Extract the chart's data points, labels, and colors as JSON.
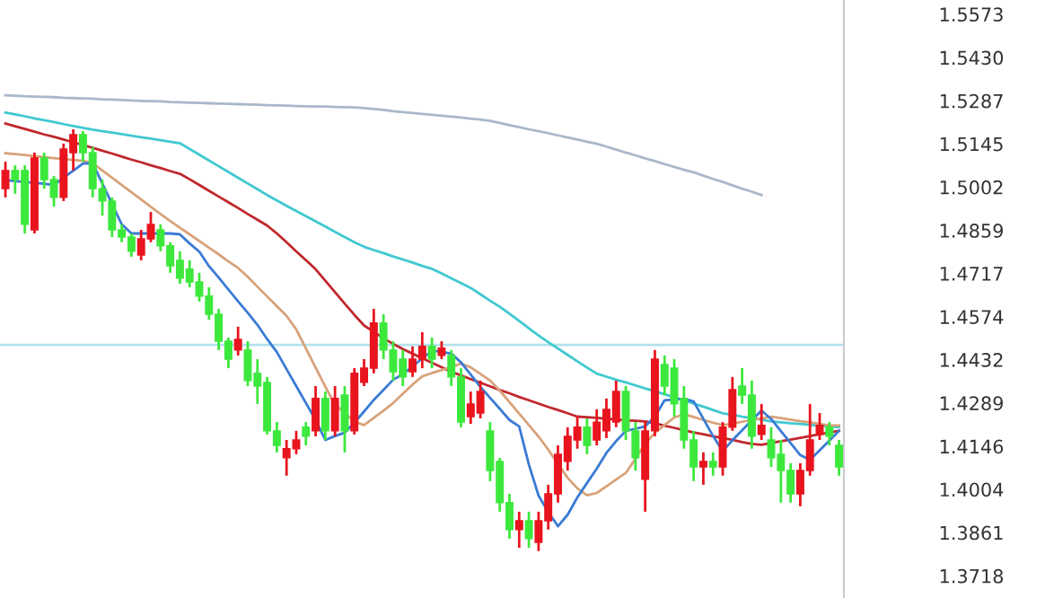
{
  "chart_data": {
    "type": "candlestick",
    "categories": [
      null,
      null,
      null,
      null,
      null,
      null,
      null,
      null,
      null,
      null,
      null,
      null,
      null,
      null,
      null,
      null,
      null,
      null,
      null,
      null,
      null,
      null,
      null,
      null,
      null,
      null,
      null,
      null,
      null,
      null,
      null,
      null,
      null,
      null,
      null,
      null,
      null,
      null,
      null,
      null,
      null,
      null,
      null,
      null,
      null,
      null,
      null,
      null,
      null,
      null,
      null,
      null,
      null,
      null,
      null,
      null,
      null,
      null,
      null,
      null,
      null,
      null,
      null,
      null,
      null,
      null,
      null,
      null,
      null,
      null,
      null,
      null,
      null,
      null,
      null,
      null,
      null,
      null,
      null,
      null,
      null,
      null,
      null,
      null,
      null,
      null,
      null
    ],
    "ohlc": [
      [
        1.4997,
        1.5086,
        1.4968,
        1.5057
      ],
      [
        1.5057,
        1.5074,
        1.498,
        1.5027
      ],
      [
        1.5057,
        1.5074,
        1.4849,
        1.4879
      ],
      [
        1.4861,
        1.5116,
        1.4849,
        1.5098
      ],
      [
        1.5098,
        1.5116,
        1.4997,
        1.5027
      ],
      [
        1.5027,
        1.5039,
        1.4938,
        1.4968
      ],
      [
        1.4968,
        1.5146,
        1.4956,
        1.5128
      ],
      [
        1.5116,
        1.5193,
        1.5057,
        1.5175
      ],
      [
        1.5175,
        1.5187,
        1.5086,
        1.5116
      ],
      [
        1.5116,
        1.5134,
        1.4968,
        1.4997
      ],
      [
        1.4997,
        1.5027,
        1.4908,
        1.4956
      ],
      [
        1.4956,
        1.4968,
        1.4837,
        1.4861
      ],
      [
        1.4861,
        1.4879,
        1.482,
        1.4837
      ],
      [
        1.4837,
        1.4849,
        1.4772,
        1.479
      ],
      [
        1.4778,
        1.4861,
        1.476,
        1.4831
      ],
      [
        1.4831,
        1.492,
        1.482,
        1.4879
      ],
      [
        1.4861,
        1.4879,
        1.479,
        1.4808
      ],
      [
        1.4808,
        1.482,
        1.4719,
        1.4742
      ],
      [
        1.476,
        1.479,
        1.4683,
        1.4701
      ],
      [
        1.4731,
        1.476,
        1.4671,
        1.4689
      ],
      [
        1.4689,
        1.4719,
        1.4624,
        1.4642
      ],
      [
        1.4642,
        1.4671,
        1.4564,
        1.4582
      ],
      [
        1.4582,
        1.46,
        1.4464,
        1.4493
      ],
      [
        1.4493,
        1.4505,
        1.4404,
        1.4434
      ],
      [
        1.4464,
        1.4541,
        1.4446,
        1.4499
      ],
      [
        1.4464,
        1.4493,
        1.4345,
        1.4363
      ],
      [
        1.4387,
        1.4434,
        1.4286,
        1.4345
      ],
      [
        1.4357,
        1.4375,
        1.4185,
        1.4197
      ],
      [
        1.4197,
        1.4226,
        1.4126,
        1.4149
      ],
      [
        1.4108,
        1.4167,
        1.4049,
        1.4138
      ],
      [
        1.4138,
        1.4197,
        1.412,
        1.4167
      ],
      [
        1.4209,
        1.4226,
        1.4149,
        1.4179
      ],
      [
        1.4197,
        1.4345,
        1.4179,
        1.4304
      ],
      [
        1.4304,
        1.4327,
        1.4167,
        1.4197
      ],
      [
        1.4197,
        1.4345,
        1.4179,
        1.4304
      ],
      [
        1.4315,
        1.4345,
        1.4126,
        1.4197
      ],
      [
        1.4197,
        1.4404,
        1.4185,
        1.4387
      ],
      [
        1.4357,
        1.4434,
        1.4345,
        1.4404
      ],
      [
        1.4404,
        1.46,
        1.4387,
        1.4553
      ],
      [
        1.4553,
        1.4582,
        1.4434,
        1.4464
      ],
      [
        1.4464,
        1.4493,
        1.4363,
        1.4392
      ],
      [
        1.4434,
        1.4464,
        1.4345,
        1.4375
      ],
      [
        1.4392,
        1.4476,
        1.4375,
        1.4434
      ],
      [
        1.4434,
        1.4523,
        1.4404,
        1.4476
      ],
      [
        1.4476,
        1.4505,
        1.4404,
        1.4434
      ],
      [
        1.4446,
        1.4493,
        1.4434,
        1.447
      ],
      [
        1.4446,
        1.4464,
        1.4345,
        1.4375
      ],
      [
        1.4375,
        1.4404,
        1.4209,
        1.4226
      ],
      [
        1.4244,
        1.4327,
        1.422,
        1.4286
      ],
      [
        1.4256,
        1.4363,
        1.4238,
        1.4327
      ],
      [
        1.4197,
        1.4226,
        1.4031,
        1.4066
      ],
      [
        1.4096,
        1.4108,
        1.393,
        1.396
      ],
      [
        1.396,
        1.3989,
        1.3841,
        1.3871
      ],
      [
        1.3871,
        1.393,
        1.3811,
        1.39
      ],
      [
        1.39,
        1.393,
        1.3811,
        1.3841
      ],
      [
        1.3829,
        1.393,
        1.38,
        1.39
      ],
      [
        1.39,
        1.4019,
        1.3871,
        1.3989
      ],
      [
        1.3989,
        1.4149,
        1.396,
        1.412
      ],
      [
        1.4096,
        1.4209,
        1.4066,
        1.4179
      ],
      [
        1.4167,
        1.4244,
        1.4138,
        1.4209
      ],
      [
        1.4209,
        1.4238,
        1.412,
        1.4149
      ],
      [
        1.4167,
        1.4268,
        1.4149,
        1.4226
      ],
      [
        1.4197,
        1.4304,
        1.4173,
        1.4268
      ],
      [
        1.4226,
        1.4363,
        1.4209,
        1.4327
      ],
      [
        1.4327,
        1.4345,
        1.4167,
        1.4197
      ],
      [
        1.4197,
        1.4226,
        1.4066,
        1.4108
      ],
      [
        1.4037,
        1.4226,
        1.393,
        1.4197
      ],
      [
        1.4197,
        1.4464,
        1.4179,
        1.4434
      ],
      [
        1.4416,
        1.4446,
        1.4315,
        1.4345
      ],
      [
        1.4404,
        1.4434,
        1.4244,
        1.4286
      ],
      [
        1.4304,
        1.4345,
        1.4138,
        1.4167
      ],
      [
        1.4167,
        1.4197,
        1.4031,
        1.4078
      ],
      [
        1.4078,
        1.4126,
        1.4019,
        1.4096
      ],
      [
        1.4096,
        1.4126,
        1.4049,
        1.4078
      ],
      [
        1.4078,
        1.4226,
        1.4049,
        1.4209
      ],
      [
        1.4209,
        1.4375,
        1.4197,
        1.4333
      ],
      [
        1.4345,
        1.4404,
        1.4286,
        1.4315
      ],
      [
        1.4315,
        1.4363,
        1.4138,
        1.4179
      ],
      [
        1.4185,
        1.4286,
        1.4167,
        1.4215
      ],
      [
        1.4167,
        1.4209,
        1.4078,
        1.4108
      ],
      [
        1.412,
        1.4167,
        1.396,
        1.4066
      ],
      [
        1.4066,
        1.409,
        1.396,
        1.3989
      ],
      [
        1.3989,
        1.409,
        1.3948,
        1.4066
      ],
      [
        1.4066,
        1.4286,
        1.4049,
        1.4167
      ],
      [
        1.4185,
        1.4256,
        1.4167,
        1.4215
      ],
      [
        1.4209,
        1.4226,
        1.4149,
        1.4179
      ],
      [
        1.4149,
        1.4167,
        1.4049,
        1.4078
      ]
    ],
    "colors": [
      "#e8141e",
      "#3de83d",
      "#3de83d",
      "#e8141e",
      "#3de83d",
      "#3de83d",
      "#e8141e",
      "#e8141e",
      "#3de83d",
      "#3de83d",
      "#3de83d",
      "#3de83d",
      "#3de83d",
      "#3de83d",
      "#e8141e",
      "#e8141e",
      "#3de83d",
      "#3de83d",
      "#3de83d",
      "#3de83d",
      "#3de83d",
      "#3de83d",
      "#3de83d",
      "#3de83d",
      "#e8141e",
      "#3de83d",
      "#3de83d",
      "#3de83d",
      "#3de83d",
      "#e8141e",
      "#e8141e",
      "#3de83d",
      "#e8141e",
      "#3de83d",
      "#e8141e",
      "#3de83d",
      "#e8141e",
      "#e8141e",
      "#e8141e",
      "#3de83d",
      "#3de83d",
      "#3de83d",
      "#e8141e",
      "#e8141e",
      "#3de83d",
      "#e8141e",
      "#3de83d",
      "#3de83d",
      "#e8141e",
      "#e8141e",
      "#3de83d",
      "#3de83d",
      "#3de83d",
      "#e8141e",
      "#3de83d",
      "#e8141e",
      "#e8141e",
      "#e8141e",
      "#e8141e",
      "#e8141e",
      "#3de83d",
      "#e8141e",
      "#e8141e",
      "#e8141e",
      "#3de83d",
      "#3de83d",
      "#e8141e",
      "#e8141e",
      "#3de83d",
      "#3de83d",
      "#3de83d",
      "#3de83d",
      "#e8141e",
      "#3de83d",
      "#e8141e",
      "#e8141e",
      "#3de83d",
      "#3de83d",
      "#e8141e",
      "#3de83d",
      "#3de83d",
      "#3de83d",
      "#e8141e",
      "#e8141e",
      "#e8141e",
      "#3de83d",
      "#3de83d"
    ],
    "series": [
      {
        "type": "line",
        "color": "#a9b8c9",
        "values": [
          1.5305,
          1.5304,
          1.5302,
          1.5301,
          1.53,
          1.5299,
          1.5297,
          1.5296,
          1.5295,
          1.5294,
          1.5292,
          1.5291,
          1.529,
          1.5288,
          1.5287,
          1.5286,
          1.5285,
          1.5283,
          1.5282,
          1.5281,
          1.528,
          1.5279,
          1.5278,
          1.5277,
          1.5276,
          1.5275,
          1.5274,
          1.5273,
          1.5272,
          1.5271,
          1.527,
          1.5269,
          1.5268,
          1.5268,
          1.5267,
          1.5266,
          1.5265,
          1.5263,
          1.526,
          1.5257,
          1.5253,
          1.525,
          1.5247,
          1.5244,
          1.5241,
          1.5238,
          1.5235,
          1.5232,
          1.5228,
          1.5225,
          1.5221,
          1.5214,
          1.5207,
          1.52,
          1.5193,
          1.5187,
          1.518,
          1.5173,
          1.5166,
          1.5159,
          1.5152,
          1.5145,
          1.5136,
          1.5126,
          1.5116,
          1.5107,
          1.5097,
          1.5088,
          1.5078,
          1.5069,
          1.5059,
          1.5051,
          1.504,
          1.5029,
          1.5019,
          1.5008,
          1.4997,
          1.4987,
          1.4976,
          null,
          null,
          null,
          null,
          null,
          null,
          null,
          null
        ]
      },
      {
        "type": "line",
        "color": "#40c8d0",
        "values": [
          1.5248,
          1.5242,
          1.5236,
          1.5229,
          1.5223,
          1.5217,
          1.521,
          1.5204,
          1.5198,
          1.5192,
          1.5187,
          1.5182,
          1.5177,
          1.5172,
          1.5167,
          1.5162,
          1.5157,
          1.5152,
          1.5147,
          1.5128,
          1.5109,
          1.509,
          1.5071,
          1.5052,
          1.5033,
          1.5014,
          1.4995,
          1.4976,
          1.4958,
          1.494,
          1.4923,
          1.4906,
          1.4889,
          1.4872,
          1.4854,
          1.4837,
          1.482,
          1.4805,
          1.4794,
          1.4784,
          1.4773,
          1.4763,
          1.4753,
          1.4742,
          1.4732,
          1.4717,
          1.4701,
          1.4685,
          1.4669,
          1.4648,
          1.4627,
          1.4607,
          1.4584,
          1.456,
          1.4536,
          1.4512,
          1.449,
          1.4469,
          1.4448,
          1.4427,
          1.4406,
          1.4386,
          1.4376,
          1.4366,
          1.4357,
          1.4347,
          1.4337,
          1.4328,
          1.4318,
          1.4308,
          1.4298,
          1.4287,
          1.4277,
          1.4266,
          1.4255,
          1.425,
          1.4244,
          1.4239,
          1.4234,
          1.4228,
          1.4225,
          1.4222,
          1.422,
          1.4217,
          1.4214,
          1.4212,
          1.4209
        ]
      },
      {
        "type": "line",
        "color": "#c0282d",
        "values": [
          1.5212,
          1.5203,
          1.5194,
          1.5185,
          1.5176,
          1.5168,
          1.5159,
          1.515,
          1.5141,
          1.5132,
          1.5122,
          1.5113,
          1.5103,
          1.5093,
          1.5084,
          1.5074,
          1.5065,
          1.5055,
          1.5046,
          1.5028,
          1.5009,
          1.499,
          1.4971,
          1.4952,
          1.4933,
          1.4913,
          1.4894,
          1.4875,
          1.4849,
          1.482,
          1.479,
          1.4761,
          1.4731,
          1.4693,
          1.4655,
          1.4617,
          1.458,
          1.4545,
          1.4524,
          1.4503,
          1.4484,
          1.4467,
          1.4452,
          1.4437,
          1.4422,
          1.4407,
          1.4392,
          1.438,
          1.4368,
          1.4356,
          1.4344,
          1.4332,
          1.4321,
          1.4309,
          1.4298,
          1.4287,
          1.4276,
          1.4266,
          1.4255,
          1.4244,
          1.4242,
          1.424,
          1.4237,
          1.4235,
          1.4232,
          1.423,
          1.4228,
          1.4222,
          1.4214,
          1.4207,
          1.4199,
          1.4192,
          1.4186,
          1.4179,
          1.4173,
          1.4167,
          1.416,
          1.4154,
          1.4151,
          1.4157,
          1.4163,
          1.4168,
          1.4174,
          1.418,
          1.4186,
          1.4192,
          1.4197
        ]
      },
      {
        "type": "line",
        "color": "#d8a27a",
        "values": [
          1.5114,
          1.5111,
          1.5108,
          1.5104,
          1.5101,
          1.5098,
          1.5095,
          1.5092,
          1.5089,
          1.5081,
          1.5057,
          1.5033,
          1.5009,
          1.4985,
          1.4961,
          1.4937,
          1.4913,
          1.489,
          1.4868,
          1.4846,
          1.4824,
          1.4802,
          1.478,
          1.4757,
          1.4735,
          1.4706,
          1.4673,
          1.4641,
          1.4609,
          1.4577,
          1.4532,
          1.4469,
          1.4406,
          1.4343,
          1.4284,
          1.4256,
          1.4228,
          1.4216,
          1.424,
          1.4264,
          1.4289,
          1.432,
          1.435,
          1.4377,
          1.4388,
          1.4398,
          1.4408,
          1.4419,
          1.4407,
          1.4385,
          1.4363,
          1.433,
          1.4292,
          1.4254,
          1.4216,
          1.4178,
          1.4135,
          1.4088,
          1.4042,
          1.4007,
          1.3984,
          1.3992,
          1.4014,
          1.4036,
          1.4058,
          1.4105,
          1.4154,
          1.4191,
          1.4216,
          1.4241,
          1.4252,
          1.4243,
          1.4233,
          1.4224,
          1.4216,
          1.4221,
          1.4227,
          1.4233,
          1.4238,
          1.4244,
          1.4239,
          1.4234,
          1.4229,
          1.4225,
          1.422,
          1.4215,
          1.4215
        ]
      },
      {
        "type": "line",
        "color": "#3a7bd5",
        "values": [
          1.5025,
          1.5022,
          1.5019,
          1.5016,
          1.5013,
          1.5009,
          1.5033,
          1.5056,
          1.508,
          1.5081,
          1.5014,
          1.4946,
          1.4879,
          1.4849,
          1.4849,
          1.4849,
          1.4849,
          1.4849,
          1.4846,
          1.4816,
          1.4789,
          1.4741,
          1.4703,
          1.4664,
          1.4625,
          1.4587,
          1.4547,
          1.45,
          1.4457,
          1.4401,
          1.4345,
          1.4289,
          1.4233,
          1.4167,
          1.418,
          1.4191,
          1.4224,
          1.4261,
          1.4299,
          1.4332,
          1.4366,
          1.4384,
          1.441,
          1.4436,
          1.4462,
          1.4458,
          1.4452,
          1.4423,
          1.4383,
          1.4342,
          1.4306,
          1.427,
          1.4233,
          1.4212,
          1.4086,
          1.3983,
          1.3929,
          1.3882,
          1.392,
          1.3977,
          1.4025,
          1.4072,
          1.4124,
          1.4163,
          1.4197,
          1.4204,
          1.4212,
          1.4244,
          1.4298,
          1.4301,
          1.4303,
          1.4294,
          1.4237,
          1.418,
          1.413,
          1.4166,
          1.4199,
          1.4232,
          1.4264,
          1.4236,
          1.4196,
          1.4157,
          1.4117,
          1.4101,
          1.4133,
          1.4165,
          1.4197
        ]
      }
    ],
    "ref_lines": [
      {
        "axis": "y",
        "value": 1.4481,
        "color": "#b4e2ec"
      }
    ],
    "ylim": [
      1.3645,
      1.562
    ],
    "yticks": [
      {
        "value": 1.5573,
        "label": "1.5573"
      },
      {
        "value": 1.543,
        "label": "1.5430"
      },
      {
        "value": 1.5287,
        "label": "1.5287"
      },
      {
        "value": 1.5145,
        "label": "1.5145"
      },
      {
        "value": 1.5002,
        "label": "1.5002"
      },
      {
        "value": 1.4859,
        "label": "1.4859"
      },
      {
        "value": 1.4717,
        "label": "1.4717"
      },
      {
        "value": 1.4574,
        "label": "1.4574"
      },
      {
        "value": 1.4432,
        "label": "1.4432"
      },
      {
        "value": 1.4289,
        "label": "1.4289"
      },
      {
        "value": 1.4146,
        "label": "1.4146"
      },
      {
        "value": 1.4004,
        "label": "1.4004"
      },
      {
        "value": 1.3861,
        "label": "1.3861"
      },
      {
        "value": 1.3718,
        "label": "1.3718"
      }
    ],
    "tick_labels": "y",
    "grid": false
  }
}
